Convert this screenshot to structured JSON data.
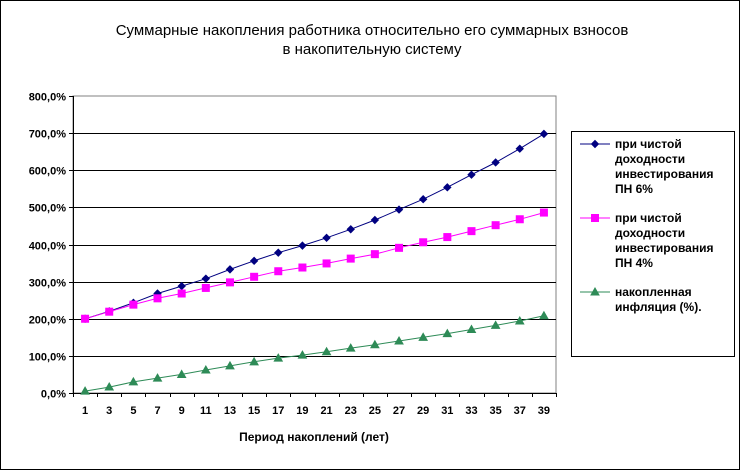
{
  "chart_data": {
    "type": "line",
    "title": [
      "Суммарные накопления работника относительно его суммарных взносов",
      "в накопительную систему"
    ],
    "xlabel": "Период накоплений (лет)",
    "ylabel": "",
    "x_ticks": [
      1,
      3,
      5,
      7,
      9,
      11,
      13,
      15,
      17,
      19,
      21,
      23,
      25,
      27,
      29,
      31,
      33,
      35,
      37,
      39
    ],
    "y_ticks": [
      "0,0%",
      "100,0%",
      "200,0%",
      "300,0%",
      "400,0%",
      "500,0%",
      "600,0%",
      "700,0%",
      "800,0%"
    ],
    "ylim": [
      0,
      800
    ],
    "xlim": [
      0,
      40
    ],
    "grid": "horizontal",
    "legend_position": "right",
    "series": [
      {
        "name_lines": [
          "при чистой",
          "доходности",
          "инвестирования",
          "ПН 6%"
        ],
        "color": "#000080",
        "marker": "diamond",
        "x": [
          1,
          3,
          5,
          7,
          9,
          11,
          13,
          15,
          17,
          19,
          21,
          23,
          25,
          27,
          29,
          31,
          33,
          35,
          37,
          39
        ],
        "values": [
          200,
          220,
          243,
          268,
          288,
          308,
          333,
          356,
          378,
          397,
          418,
          441,
          466,
          494,
          522,
          554,
          588,
          621,
          658,
          698
        ]
      },
      {
        "name_lines": [
          "при чистой",
          "доходности",
          "инвестирования",
          "ПН 4%"
        ],
        "color": "#ff00ff",
        "marker": "square",
        "x": [
          1,
          3,
          5,
          7,
          9,
          11,
          13,
          15,
          17,
          19,
          21,
          23,
          25,
          27,
          29,
          31,
          33,
          35,
          37,
          39
        ],
        "values": [
          200,
          219,
          238,
          255,
          268,
          283,
          298,
          313,
          328,
          338,
          349,
          362,
          374,
          391,
          406,
          420,
          436,
          452,
          468,
          486
        ]
      },
      {
        "name_lines": [
          "накопленная",
          "инфляция  (%)."
        ],
        "color": "#2e8b57",
        "marker": "triangle",
        "x": [
          1,
          3,
          5,
          7,
          9,
          11,
          13,
          15,
          17,
          19,
          21,
          23,
          25,
          27,
          29,
          31,
          33,
          35,
          37,
          39
        ],
        "values": [
          5,
          16,
          30,
          40,
          50,
          62,
          73,
          84,
          94,
          102,
          111,
          121,
          130,
          140,
          150,
          160,
          171,
          182,
          194,
          208
        ]
      }
    ]
  }
}
